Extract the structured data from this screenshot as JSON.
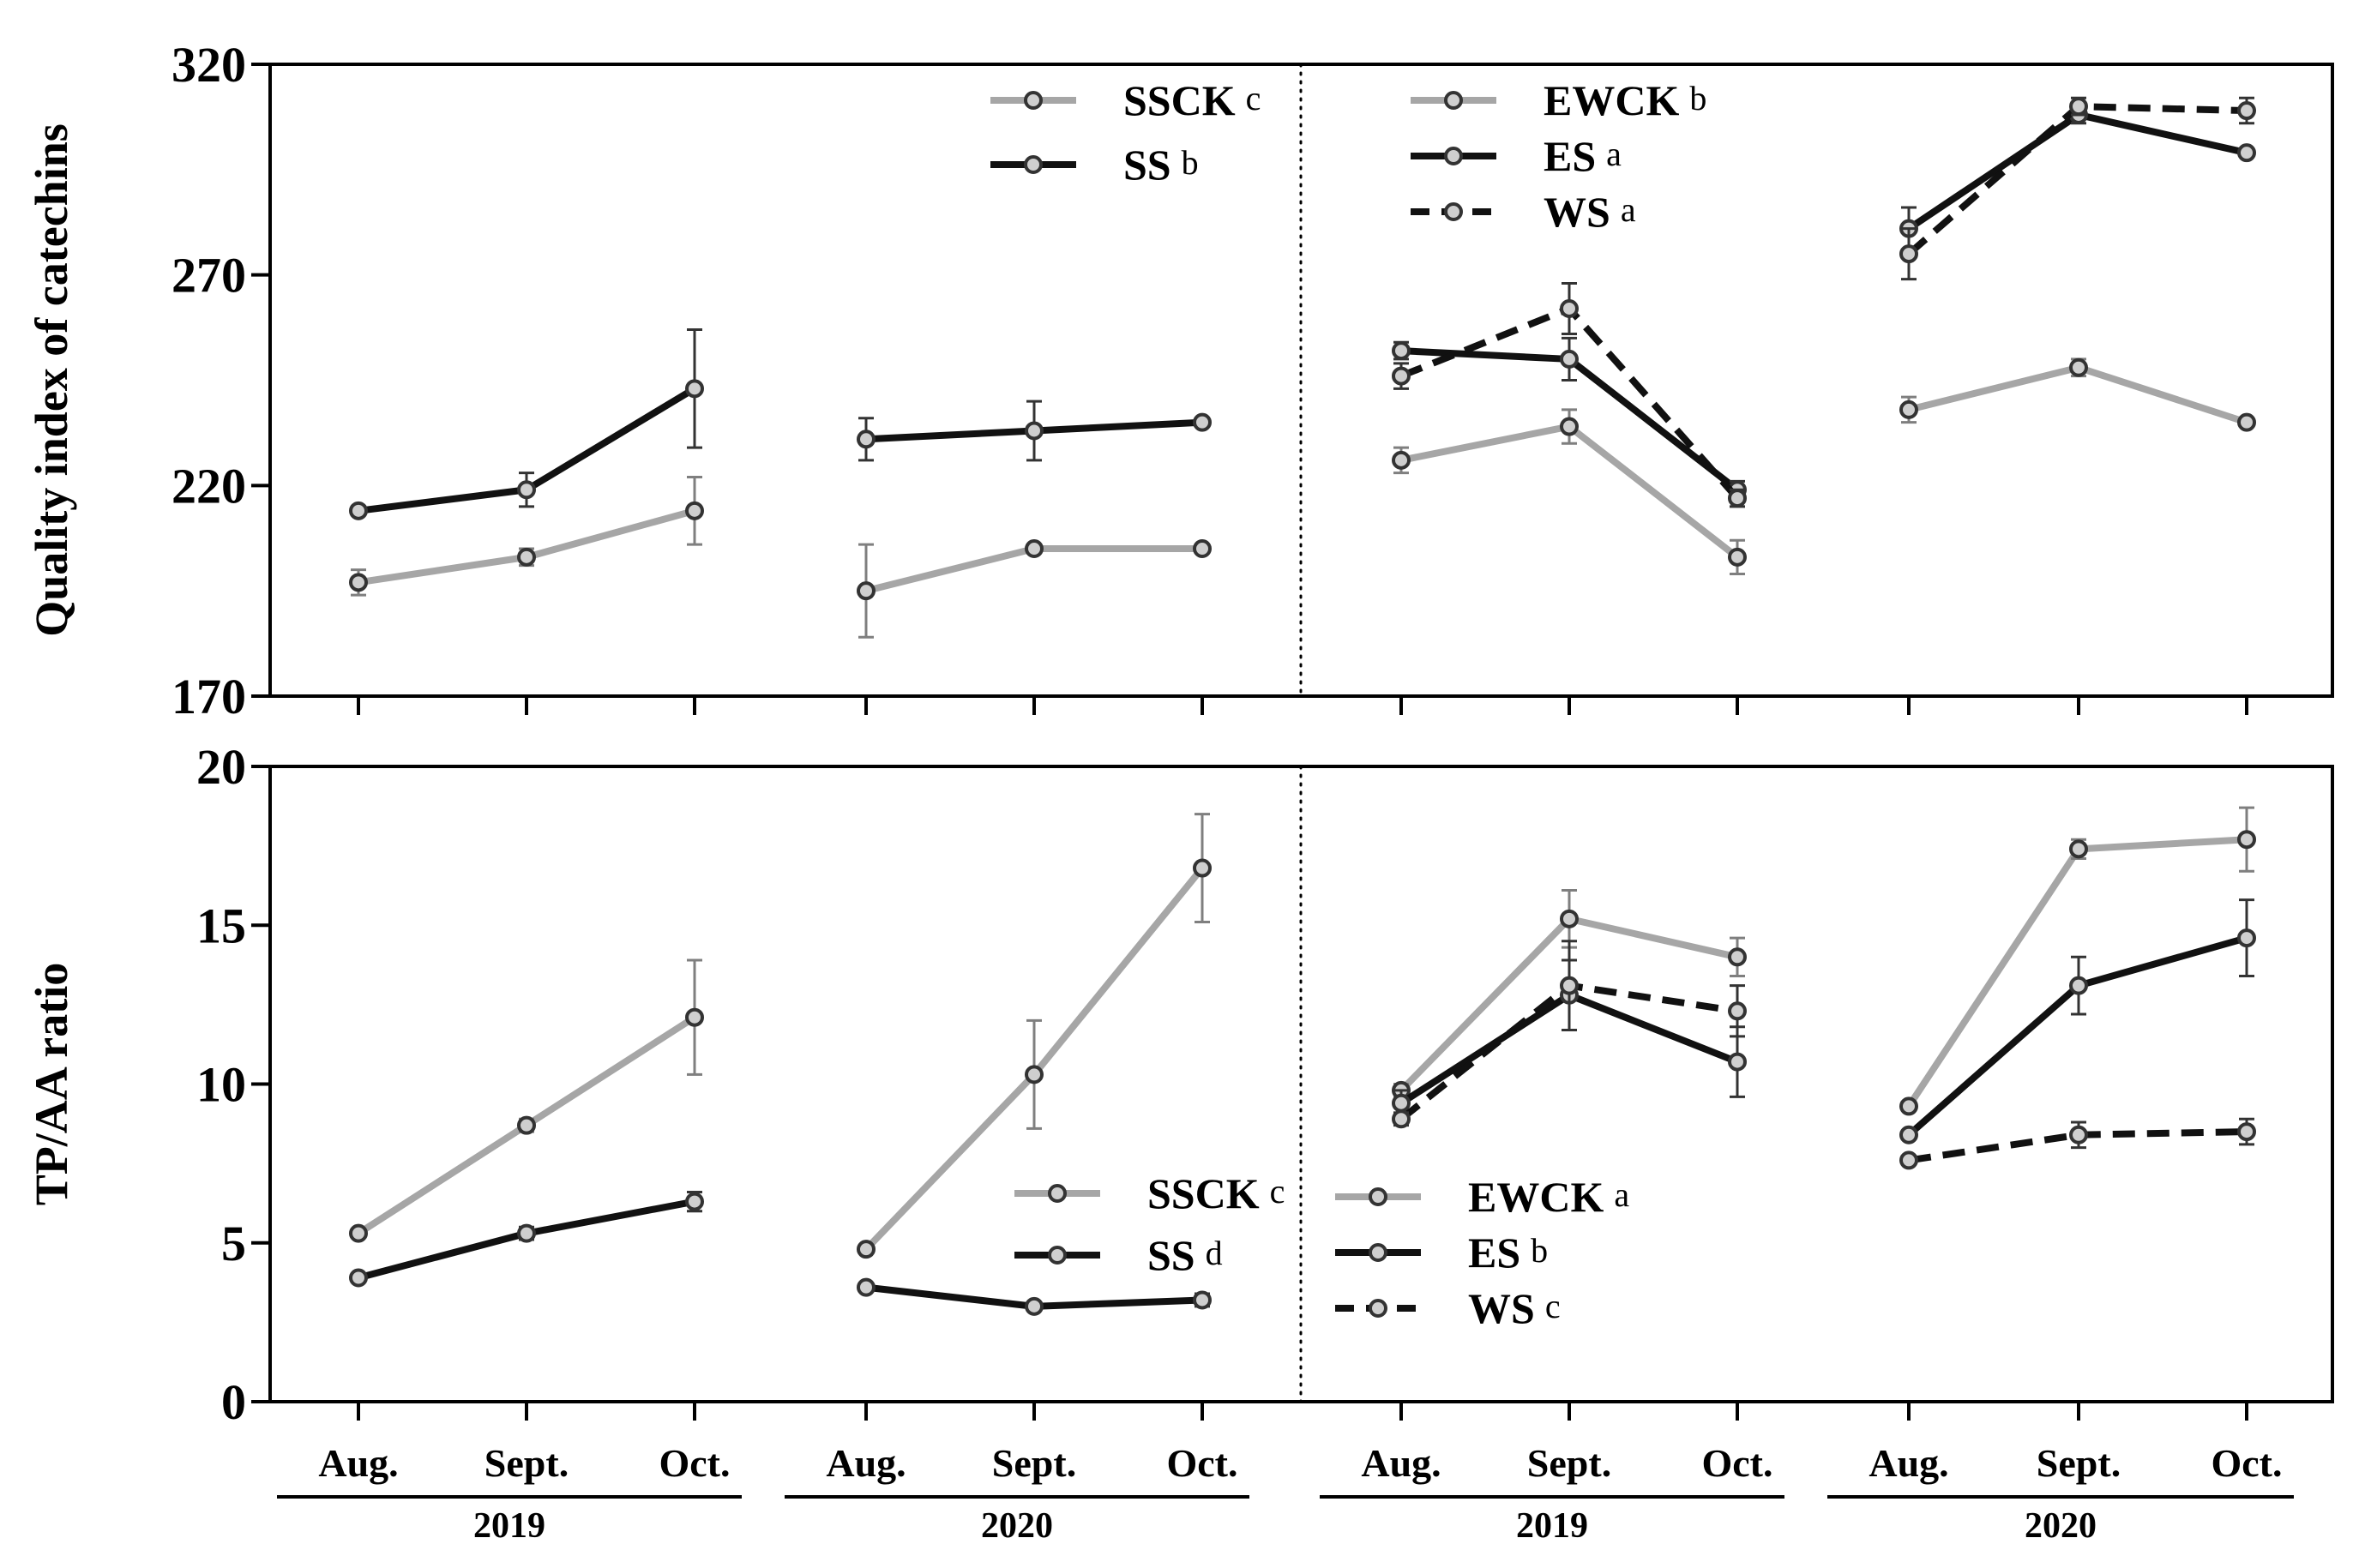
{
  "chart_data": [
    {
      "type": "line",
      "panel": "top",
      "ylabel": "Quality index of catechins",
      "ylim": [
        170,
        320
      ],
      "yticks": [
        170,
        220,
        270,
        320
      ],
      "groups": [
        {
          "id": "A",
          "segments": [
            {
              "year": "2019",
              "months": [
                "Aug.",
                "Sept.",
                "Oct."
              ]
            },
            {
              "year": "2020",
              "months": [
                "Aug.",
                "Sept.",
                "Oct."
              ]
            }
          ],
          "legend": [
            {
              "name": "SSCK",
              "letter": "c",
              "color": "#a6a6a6",
              "dash": false
            },
            {
              "name": "SS",
              "letter": "b",
              "color": "#111111",
              "dash": false
            }
          ],
          "series": [
            {
              "name": "SSCK",
              "color": "#a6a6a6",
              "dash": false,
              "values": [
                [
                  197,
                  203,
                  214
                ],
                [
                  195,
                  205,
                  205
                ]
              ],
              "err": [
                [
                  3,
                  2,
                  8
                ],
                [
                  11,
                  1,
                  1
                ]
              ]
            },
            {
              "name": "SS",
              "color": "#111111",
              "dash": false,
              "values": [
                [
                  214,
                  219,
                  243
                ],
                [
                  231,
                  233,
                  235
                ]
              ],
              "err": [
                [
                  1,
                  4,
                  14
                ],
                [
                  5,
                  7,
                  1
                ]
              ]
            }
          ]
        },
        {
          "id": "B",
          "segments": [
            {
              "year": "2019",
              "months": [
                "Aug.",
                "Sept.",
                "Oct."
              ]
            },
            {
              "year": "2020",
              "months": [
                "Aug.",
                "Sept.",
                "Oct."
              ]
            }
          ],
          "legend": [
            {
              "name": "EWCK",
              "letter": "b",
              "color": "#a6a6a6",
              "dash": false
            },
            {
              "name": "ES",
              "letter": "a",
              "color": "#111111",
              "dash": false
            },
            {
              "name": "WS",
              "letter": "a",
              "color": "#111111",
              "dash": true
            }
          ],
          "series": [
            {
              "name": "EWCK",
              "color": "#a6a6a6",
              "dash": false,
              "values": [
                [
                  226,
                  234,
                  203
                ],
                [
                  238,
                  248,
                  235
                ]
              ],
              "err": [
                [
                  3,
                  4,
                  4
                ],
                [
                  3,
                  2,
                  1
                ]
              ]
            },
            {
              "name": "ES",
              "color": "#111111",
              "dash": false,
              "values": [
                [
                  252,
                  250,
                  219
                ],
                [
                  281,
                  308,
                  299
                ]
              ],
              "err": [
                [
                  2,
                  5,
                  2
                ],
                [
                  5,
                  2,
                  1
                ]
              ]
            },
            {
              "name": "WS",
              "color": "#111111",
              "dash": true,
              "values": [
                [
                  246,
                  262,
                  217
                ],
                [
                  275,
                  310,
                  309
                ]
              ],
              "err": [
                [
                  3,
                  6,
                  2
                ],
                [
                  6,
                  2,
                  3
                ]
              ]
            }
          ]
        }
      ]
    },
    {
      "type": "line",
      "panel": "bottom",
      "ylabel": "TP/AA ratio",
      "ylim": [
        0,
        20
      ],
      "yticks": [
        0,
        5,
        10,
        15,
        20
      ],
      "groups": [
        {
          "id": "A",
          "segments": [
            {
              "year": "2019",
              "months": [
                "Aug.",
                "Sept.",
                "Oct."
              ]
            },
            {
              "year": "2020",
              "months": [
                "Aug.",
                "Sept.",
                "Oct."
              ]
            }
          ],
          "legend": [
            {
              "name": "SSCK",
              "letter": "c",
              "color": "#a6a6a6",
              "dash": false
            },
            {
              "name": "SS",
              "letter": "d",
              "color": "#111111",
              "dash": false
            }
          ],
          "series": [
            {
              "name": "SSCK",
              "color": "#a6a6a6",
              "dash": false,
              "values": [
                [
                  5.3,
                  8.7,
                  12.1
                ],
                [
                  4.8,
                  10.3,
                  16.8
                ]
              ],
              "err": [
                [
                  0.1,
                  0.2,
                  1.8
                ],
                [
                  0.1,
                  1.7,
                  1.7
                ]
              ]
            },
            {
              "name": "SS",
              "color": "#111111",
              "dash": false,
              "values": [
                [
                  3.9,
                  5.3,
                  6.3
                ],
                [
                  3.6,
                  3.0,
                  3.2
                ]
              ],
              "err": [
                [
                  0.1,
                  0.2,
                  0.3
                ],
                [
                  0.1,
                  0.1,
                  0.2
                ]
              ]
            }
          ]
        },
        {
          "id": "B",
          "segments": [
            {
              "year": "2019",
              "months": [
                "Aug.",
                "Sept.",
                "Oct."
              ]
            },
            {
              "year": "2020",
              "months": [
                "Aug.",
                "Sept.",
                "Oct."
              ]
            }
          ],
          "legend": [
            {
              "name": "EWCK",
              "letter": "a",
              "color": "#a6a6a6",
              "dash": false
            },
            {
              "name": "ES",
              "letter": "b",
              "color": "#111111",
              "dash": false
            },
            {
              "name": "WS",
              "letter": "c",
              "color": "#111111",
              "dash": true
            }
          ],
          "series": [
            {
              "name": "EWCK",
              "color": "#a6a6a6",
              "dash": false,
              "values": [
                [
                  9.8,
                  15.2,
                  14.0
                ],
                [
                  9.3,
                  17.4,
                  17.7
                ]
              ],
              "err": [
                [
                  0.2,
                  0.9,
                  0.6
                ],
                [
                  0.1,
                  0.3,
                  1.0
                ]
              ]
            },
            {
              "name": "ES",
              "color": "#111111",
              "dash": false,
              "values": [
                [
                  9.4,
                  12.8,
                  10.7
                ],
                [
                  8.4,
                  13.1,
                  14.6
                ]
              ],
              "err": [
                [
                  0.4,
                  1.1,
                  1.1
                ],
                [
                  0.1,
                  0.9,
                  1.2
                ]
              ]
            },
            {
              "name": "WS",
              "color": "#111111",
              "dash": true,
              "values": [
                [
                  8.9,
                  13.1,
                  12.3
                ],
                [
                  7.6,
                  8.4,
                  8.5
                ]
              ],
              "err": [
                [
                  0.2,
                  1.4,
                  0.8
                ],
                [
                  0.1,
                  0.4,
                  0.4
                ]
              ]
            }
          ]
        }
      ]
    }
  ]
}
